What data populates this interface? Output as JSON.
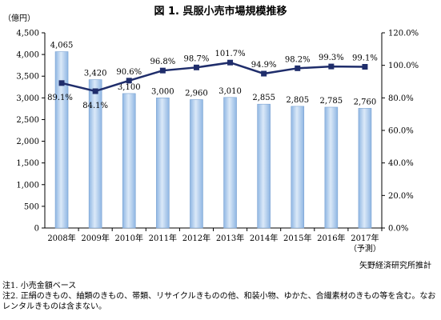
{
  "title": "図 1. 呉服小売市場規模推移",
  "source": "矢野経済研究所推計",
  "notes": [
    "注1. 小売金額ベース",
    "注2. 正絹のきもの、紬類のきもの、帯類、リサイクルきものの他、和装小物、ゆかた、合繊素材のきもの等を含む。なおレンタルきものは含まない。"
  ],
  "chart_data": {
    "type": "bar",
    "categories": [
      "2008年",
      "2009年",
      "2010年",
      "2011年",
      "2012年",
      "2013年",
      "2014年",
      "2015年",
      "2016年",
      "2017年"
    ],
    "category_sub": [
      "",
      "",
      "",
      "",
      "",
      "",
      "",
      "",
      "",
      "（予測）"
    ],
    "ylabel": "（億円）",
    "ylim": [
      0,
      4500
    ],
    "y2lim": [
      0,
      120
    ],
    "yticks": [
      "0",
      "500",
      "1,000",
      "1,500",
      "2,000",
      "2,500",
      "3,000",
      "3,500",
      "4,000",
      "4,500"
    ],
    "y2ticks": [
      "0.0%",
      "20.0%",
      "40.0%",
      "60.0%",
      "80.0%",
      "100.0%",
      "120.0%"
    ],
    "series": [
      {
        "type": "bar",
        "values": [
          4065,
          3420,
          3100,
          3000,
          2960,
          3010,
          2855,
          2805,
          2785,
          2760
        ],
        "labels": [
          "4,065",
          "3,420",
          "3,100",
          "3,000",
          "2,960",
          "3,010",
          "2,855",
          "2,805",
          "2,785",
          "2,760"
        ]
      },
      {
        "type": "line",
        "axis": "right",
        "values": [
          89.1,
          84.1,
          90.6,
          96.8,
          98.7,
          101.7,
          94.9,
          98.2,
          99.3,
          99.1
        ],
        "labels": [
          "89.1%",
          "84.1%",
          "90.6%",
          "96.8%",
          "98.7%",
          "101.7%",
          "94.9%",
          "98.2%",
          "99.3%",
          "99.1%"
        ]
      }
    ],
    "grid": false,
    "colors": {
      "bar_light": "#dbe9f8",
      "bar_dark": "#8fb6e3",
      "bar_edge": "#7aa2d2",
      "line": "#1f2d6b"
    }
  }
}
